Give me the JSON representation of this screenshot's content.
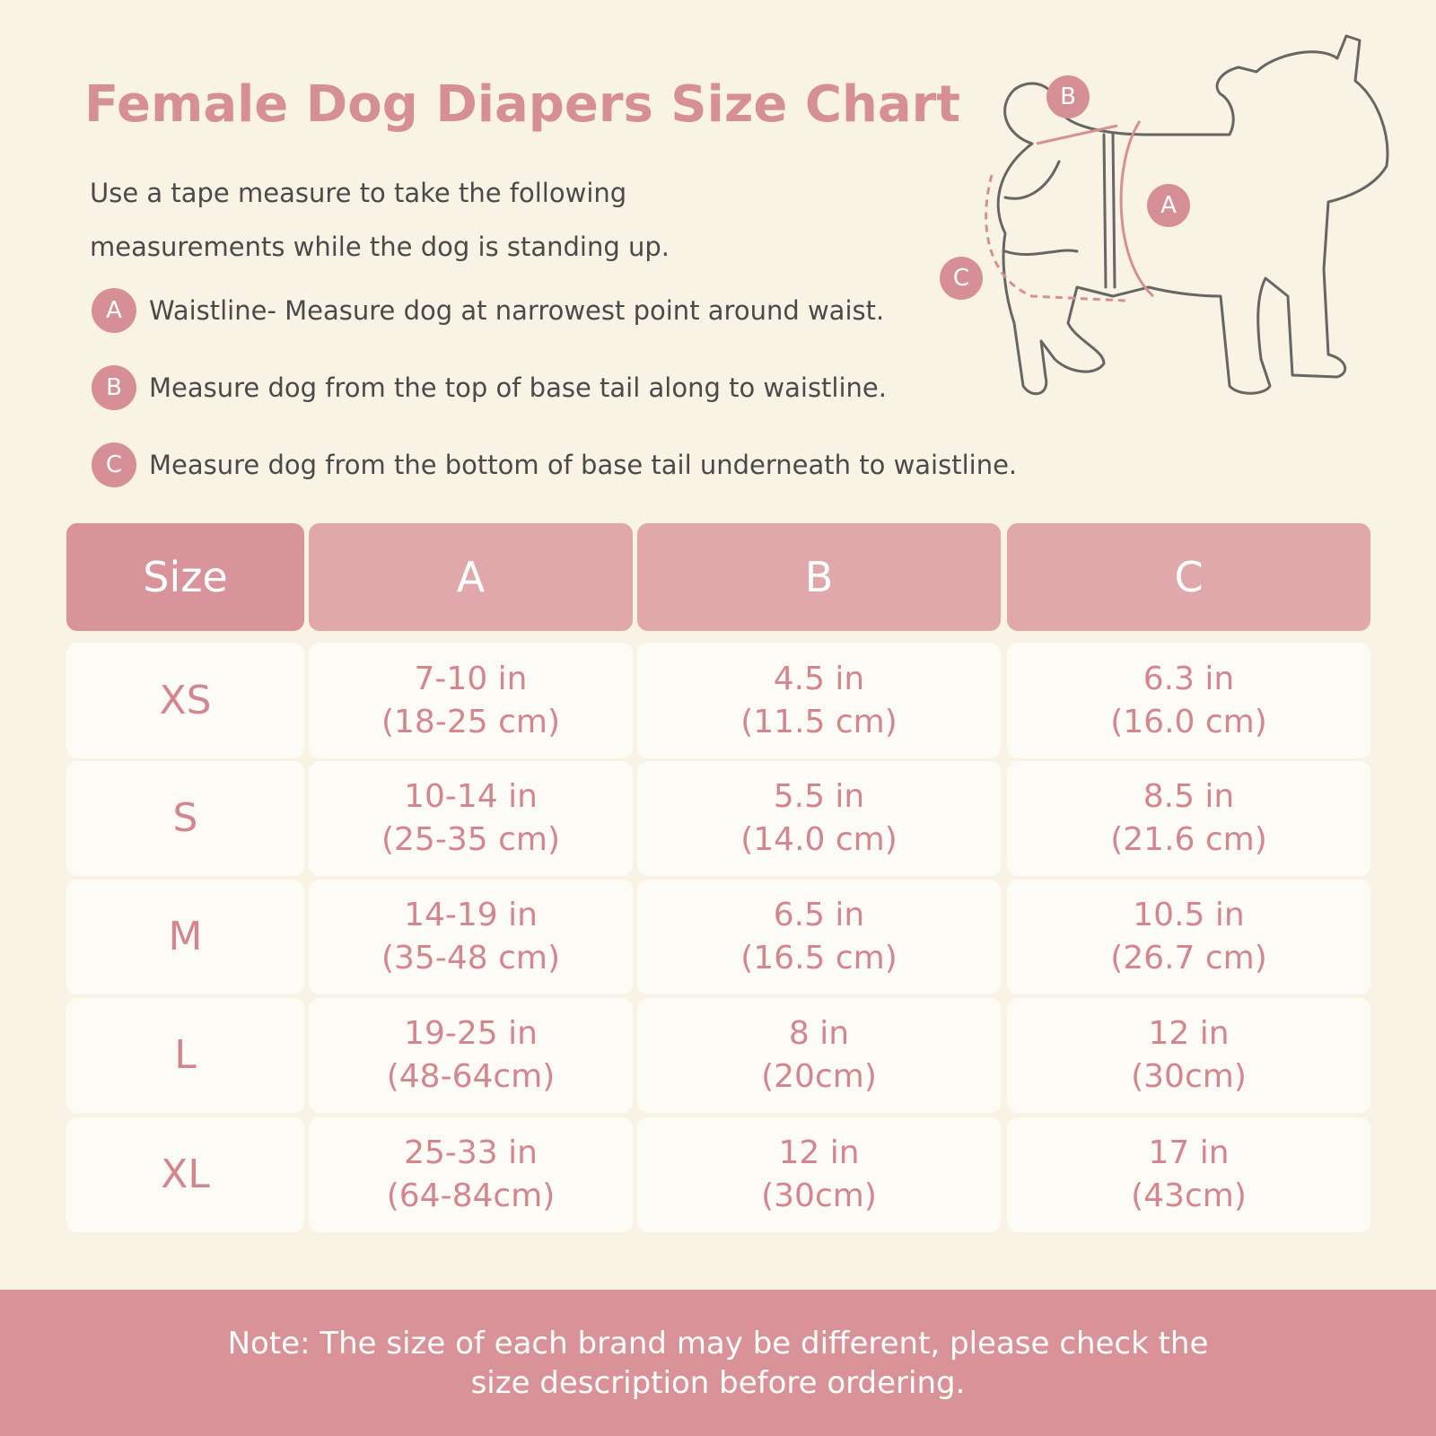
{
  "header": {
    "title": "Female Dog Diapers Size Chart",
    "intro": [
      "Use a tape measure to take the following",
      "measurements while the dog is standing up."
    ]
  },
  "instructions": [
    {
      "marker": "A",
      "text": "Waistline- Measure dog at narrowest point around waist."
    },
    {
      "marker": "B",
      "text": "Measure dog from the top of base tail along to waistline."
    },
    {
      "marker": "C",
      "text": "Measure dog from the bottom of base tail underneath to waistline."
    }
  ],
  "diagram": {
    "labels": [
      "B",
      "A",
      "C"
    ]
  },
  "table": {
    "columns": [
      "Size",
      "A",
      "B",
      "C"
    ],
    "rows": [
      [
        "XS",
        [
          "7-10 in",
          "(18-25 cm)"
        ],
        [
          "4.5 in",
          "(11.5 cm)"
        ],
        [
          "6.3 in",
          "(16.0 cm)"
        ]
      ],
      [
        "S",
        [
          "10-14 in",
          "(25-35 cm)"
        ],
        [
          "5.5 in",
          "(14.0 cm)"
        ],
        [
          "8.5 in",
          "(21.6 cm)"
        ]
      ],
      [
        "M",
        [
          "14-19 in",
          "(35-48 cm)"
        ],
        [
          "6.5 in",
          "(16.5 cm)"
        ],
        [
          "10.5 in",
          "(26.7 cm)"
        ]
      ],
      [
        "L",
        [
          "19-25 in",
          "(48-64cm)"
        ],
        [
          "8 in",
          "(20cm)"
        ],
        [
          "12 in",
          "(30cm)"
        ]
      ],
      [
        "XL",
        [
          "25-33 in",
          "(64-84cm)"
        ],
        [
          "12 in",
          "(30cm)"
        ],
        [
          "17 in",
          "(43cm)"
        ]
      ]
    ]
  },
  "note": [
    "Note: The size of each brand may be different, please check the",
    "size description before ordering."
  ]
}
